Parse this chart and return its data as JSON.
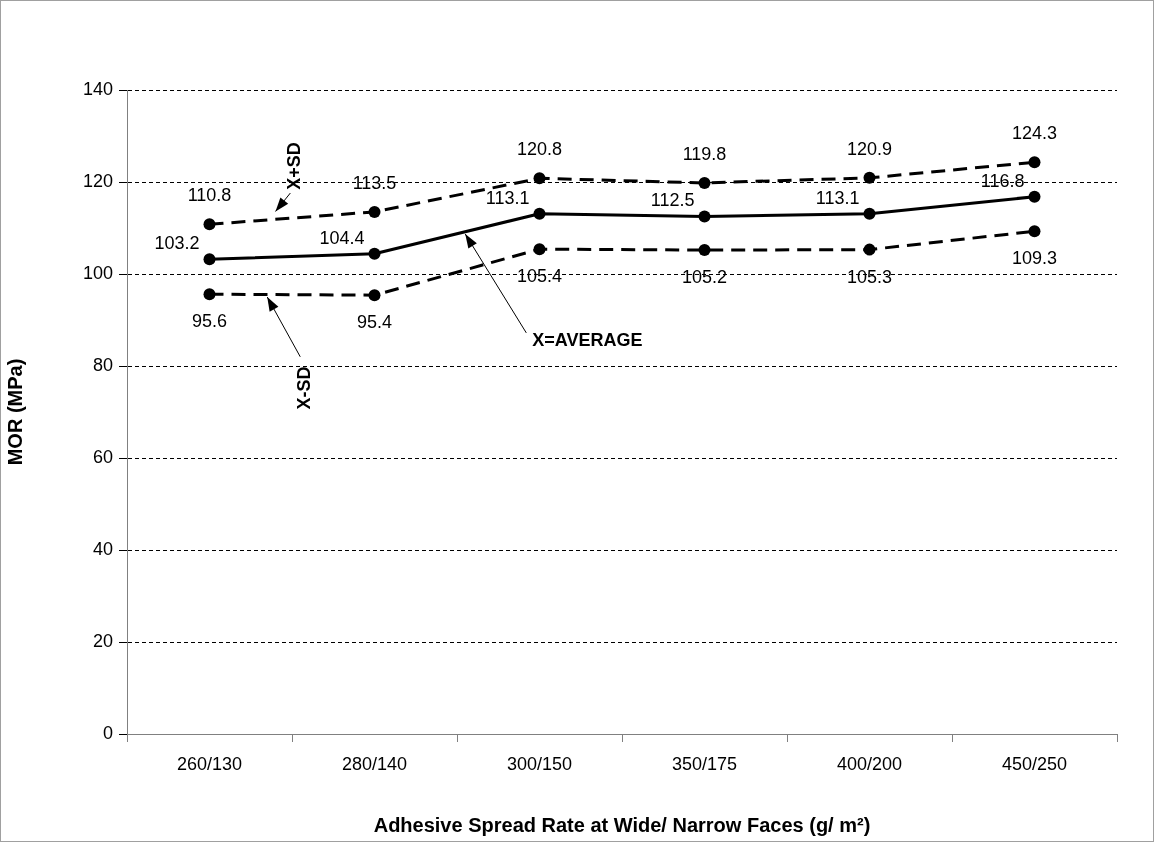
{
  "chart_data": {
    "type": "line",
    "xlabel": "Adhesive Spread Rate at Wide/ Narrow Faces (g/ m²)",
    "ylabel": "MOR (MPa)",
    "categories": [
      "260/130",
      "280/140",
      "300/150",
      "350/175",
      "400/200",
      "450/250"
    ],
    "series": [
      {
        "name": "X+SD",
        "color": "#000000",
        "line_style": "dashed",
        "values": [
          110.8,
          113.5,
          120.8,
          119.8,
          120.9,
          124.3
        ]
      },
      {
        "name": "X=AVERAGE",
        "color": "#000000",
        "line_style": "solid",
        "values": [
          103.2,
          104.4,
          113.1,
          112.5,
          113.1,
          116.8
        ]
      },
      {
        "name": "X-SD",
        "color": "#000000",
        "line_style": "dashed",
        "values": [
          95.6,
          95.4,
          105.4,
          105.2,
          105.3,
          109.3
        ]
      }
    ],
    "ylim": [
      0,
      140
    ],
    "yticks": [
      0,
      20,
      40,
      60,
      80,
      100,
      120,
      140
    ],
    "grid": "y",
    "legend": false,
    "marker": "circle",
    "data_labels": true
  }
}
